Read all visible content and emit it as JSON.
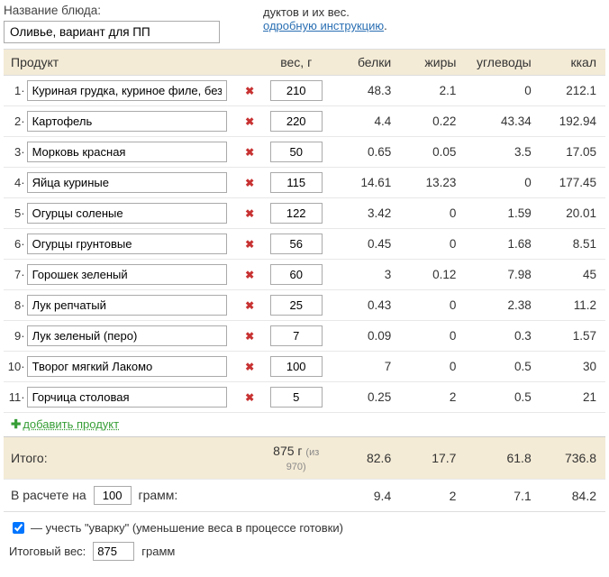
{
  "dish": {
    "label": "Название блюда:",
    "value": "Оливье, вариант для ПП"
  },
  "side": {
    "line1": "дуктов и их вес.",
    "link": "одробную инструкцию",
    "dot": "."
  },
  "columns": {
    "product": "Продукт",
    "weight": "вес, г",
    "protein": "белки",
    "fat": "жиры",
    "carb": "углеводы",
    "kcal": "ккал"
  },
  "rows": [
    {
      "idx": "1·",
      "name": "Куриная грудка, куриное филе, без",
      "weight": "210",
      "p": "48.3",
      "f": "2.1",
      "c": "0",
      "k": "212.1"
    },
    {
      "idx": "2·",
      "name": "Картофель",
      "weight": "220",
      "p": "4.4",
      "f": "0.22",
      "c": "43.34",
      "k": "192.94"
    },
    {
      "idx": "3·",
      "name": "Морковь красная",
      "weight": "50",
      "p": "0.65",
      "f": "0.05",
      "c": "3.5",
      "k": "17.05"
    },
    {
      "idx": "4·",
      "name": "Яйца куриные",
      "weight": "115",
      "p": "14.61",
      "f": "13.23",
      "c": "0",
      "k": "177.45"
    },
    {
      "idx": "5·",
      "name": "Огурцы соленые",
      "weight": "122",
      "p": "3.42",
      "f": "0",
      "c": "1.59",
      "k": "20.01"
    },
    {
      "idx": "6·",
      "name": "Огурцы грунтовые",
      "weight": "56",
      "p": "0.45",
      "f": "0",
      "c": "1.68",
      "k": "8.51"
    },
    {
      "idx": "7·",
      "name": "Горошек зеленый",
      "weight": "60",
      "p": "3",
      "f": "0.12",
      "c": "7.98",
      "k": "45"
    },
    {
      "idx": "8·",
      "name": "Лук репчатый",
      "weight": "25",
      "p": "0.43",
      "f": "0",
      "c": "2.38",
      "k": "11.2"
    },
    {
      "idx": "9·",
      "name": "Лук зеленый (перо)",
      "weight": "7",
      "p": "0.09",
      "f": "0",
      "c": "0.3",
      "k": "1.57"
    },
    {
      "idx": "10·",
      "name": "Творог мягкий Лакомо",
      "weight": "100",
      "p": "7",
      "f": "0",
      "c": "0.5",
      "k": "30"
    },
    {
      "idx": "11·",
      "name": "Горчица столовая",
      "weight": "5",
      "p": "0.25",
      "f": "2",
      "c": "0.5",
      "k": "21"
    }
  ],
  "add": {
    "label": "добавить продукт"
  },
  "totals": {
    "label": "Итого:",
    "weight": "875 г",
    "weight_of": "(из 970)",
    "p": "82.6",
    "f": "17.7",
    "c": "61.8",
    "k": "736.8"
  },
  "per100": {
    "prefix": "В расчете на",
    "value": "100",
    "suffix": "грамм:",
    "p": "9.4",
    "f": "2",
    "c": "7.1",
    "k": "84.2"
  },
  "footer": {
    "uvarka_label": "— учесть \"уварку\" (уменьшение веса в процессе готовки)",
    "final_label": "Итоговый вес:",
    "final_value": "875",
    "final_suffix": "грамм"
  }
}
